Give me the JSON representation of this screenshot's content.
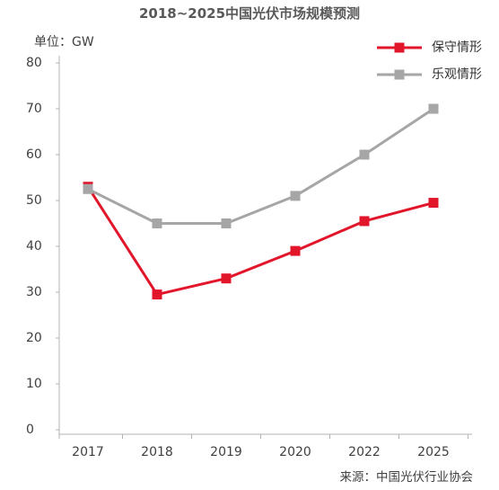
{
  "chart_data": {
    "type": "line",
    "title": "2018~2025中国光伏市场规模预测",
    "ylabel": "单位：GW",
    "categories": [
      "2017",
      "2018",
      "2019",
      "2020",
      "2022",
      "2025"
    ],
    "ylim": [
      0,
      80
    ],
    "yticks": [
      0,
      10,
      20,
      30,
      40,
      50,
      60,
      70,
      80
    ],
    "grid": false,
    "legend_position": "top-right",
    "series": [
      {
        "name": "保守情形",
        "color": "#e2162b",
        "values": [
          53,
          29.5,
          33,
          39,
          45.5,
          49.5
        ]
      },
      {
        "name": "乐观情形",
        "color": "#a6a6a6",
        "values": [
          52.5,
          45,
          45,
          51,
          60,
          70
        ]
      }
    ],
    "source": "来源：中国光伏行业协会"
  }
}
